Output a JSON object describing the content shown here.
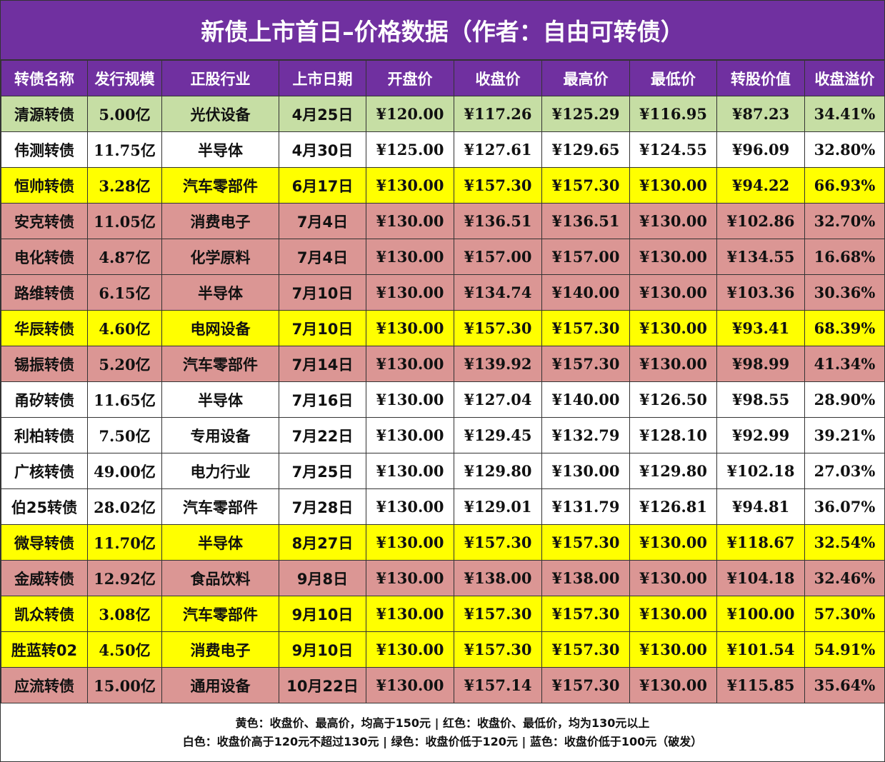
{
  "title": "新债上市首日–价格数据（作者：自由可转债）",
  "colors": {
    "header": "#7030A0",
    "green": "#C6DEA4",
    "white": "#FFFFFF",
    "yellow": "#FFFF00",
    "red": "#DB9694"
  },
  "columns": [
    "转债名称",
    "发行规模",
    "正股行业",
    "上市日期",
    "开盘价",
    "收盘价",
    "最高价",
    "最低价",
    "转股价值",
    "收盘溢价"
  ],
  "rows": [
    {
      "color": "green",
      "cells": [
        "清源转债",
        "5.00亿",
        "光伏设备",
        "4月25日",
        "¥120.00",
        "¥117.26",
        "¥125.29",
        "¥116.95",
        "¥87.23",
        "34.41%"
      ]
    },
    {
      "color": "white",
      "cells": [
        "伟测转债",
        "11.75亿",
        "半导体",
        "4月30日",
        "¥125.00",
        "¥127.61",
        "¥129.65",
        "¥124.55",
        "¥96.09",
        "32.80%"
      ]
    },
    {
      "color": "yellow",
      "cells": [
        "恒帅转债",
        "3.28亿",
        "汽车零部件",
        "6月17日",
        "¥130.00",
        "¥157.30",
        "¥157.30",
        "¥130.00",
        "¥94.22",
        "66.93%"
      ]
    },
    {
      "color": "red",
      "cells": [
        "安克转债",
        "11.05亿",
        "消费电子",
        "7月4日",
        "¥130.00",
        "¥136.51",
        "¥136.51",
        "¥130.00",
        "¥102.86",
        "32.70%"
      ]
    },
    {
      "color": "red",
      "cells": [
        "电化转债",
        "4.87亿",
        "化学原料",
        "7月4日",
        "¥130.00",
        "¥157.00",
        "¥157.00",
        "¥130.00",
        "¥134.55",
        "16.68%"
      ]
    },
    {
      "color": "red",
      "cells": [
        "路维转债",
        "6.15亿",
        "半导体",
        "7月10日",
        "¥130.00",
        "¥134.74",
        "¥140.00",
        "¥130.00",
        "¥103.36",
        "30.36%"
      ]
    },
    {
      "color": "yellow",
      "cells": [
        "华辰转债",
        "4.60亿",
        "电网设备",
        "7月10日",
        "¥130.00",
        "¥157.30",
        "¥157.30",
        "¥130.00",
        "¥93.41",
        "68.39%"
      ]
    },
    {
      "color": "red",
      "cells": [
        "锡振转债",
        "5.20亿",
        "汽车零部件",
        "7月14日",
        "¥130.00",
        "¥139.92",
        "¥157.30",
        "¥130.00",
        "¥98.99",
        "41.34%"
      ]
    },
    {
      "color": "white",
      "cells": [
        "甬矽转债",
        "11.65亿",
        "半导体",
        "7月16日",
        "¥130.00",
        "¥127.04",
        "¥140.00",
        "¥126.50",
        "¥98.55",
        "28.90%"
      ]
    },
    {
      "color": "white",
      "cells": [
        "利柏转债",
        "7.50亿",
        "专用设备",
        "7月22日",
        "¥130.00",
        "¥129.45",
        "¥132.79",
        "¥128.10",
        "¥92.99",
        "39.21%"
      ]
    },
    {
      "color": "white",
      "cells": [
        "广核转债",
        "49.00亿",
        "电力行业",
        "7月25日",
        "¥130.00",
        "¥129.80",
        "¥130.00",
        "¥129.80",
        "¥102.18",
        "27.03%"
      ]
    },
    {
      "color": "white",
      "cells": [
        "伯25转债",
        "28.02亿",
        "汽车零部件",
        "7月28日",
        "¥130.00",
        "¥129.01",
        "¥131.79",
        "¥126.81",
        "¥94.81",
        "36.07%"
      ]
    },
    {
      "color": "yellow",
      "cells": [
        "微导转债",
        "11.70亿",
        "半导体",
        "8月27日",
        "¥130.00",
        "¥157.30",
        "¥157.30",
        "¥130.00",
        "¥118.67",
        "32.54%"
      ]
    },
    {
      "color": "red",
      "cells": [
        "金威转债",
        "12.92亿",
        "食品饮料",
        "9月8日",
        "¥130.00",
        "¥138.00",
        "¥138.00",
        "¥130.00",
        "¥104.18",
        "32.46%"
      ]
    },
    {
      "color": "yellow",
      "cells": [
        "凯众转债",
        "3.08亿",
        "汽车零部件",
        "9月10日",
        "¥130.00",
        "¥157.30",
        "¥157.30",
        "¥130.00",
        "¥100.00",
        "57.30%"
      ]
    },
    {
      "color": "yellow",
      "cells": [
        "胜蓝转02",
        "4.50亿",
        "消费电子",
        "9月10日",
        "¥130.00",
        "¥157.30",
        "¥157.30",
        "¥130.00",
        "¥101.54",
        "54.91%"
      ]
    },
    {
      "color": "red",
      "cells": [
        "应流转债",
        "15.00亿",
        "通用设备",
        "10月22日",
        "¥130.00",
        "¥157.14",
        "¥157.30",
        "¥130.00",
        "¥115.85",
        "35.64%"
      ]
    }
  ],
  "legend": {
    "line1": "黄色：收盘价、最高价，均高于150元 | 红色：收盘价、最低价，均为130元以上",
    "line2": "白色：收盘价高于120元不超过130元 | 绿色：收盘价低于120元  | 蓝色：收盘价低于100元（破发）"
  }
}
